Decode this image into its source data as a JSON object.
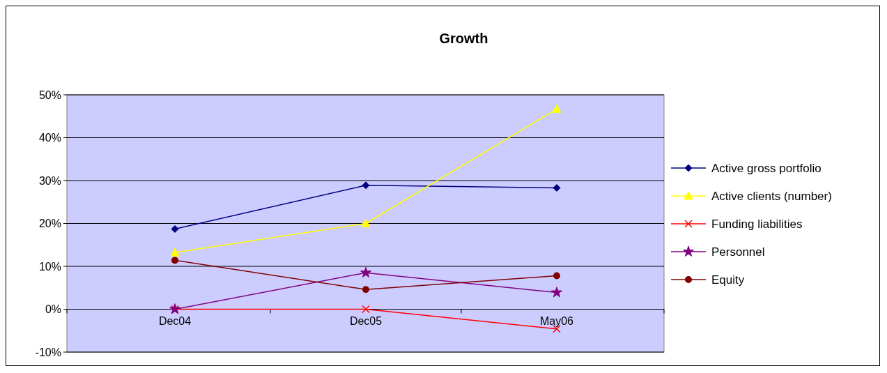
{
  "chart_data": {
    "type": "line",
    "title": "Growth",
    "categories": [
      "Dec04",
      "Dec05",
      "May06"
    ],
    "series": [
      {
        "name": "Active gross portfolio",
        "color": "#000080",
        "marker": "diamond",
        "values": [
          18.7,
          28.9,
          28.3
        ]
      },
      {
        "name": "Active clients (number)",
        "color": "#ffff00",
        "marker": "triangle",
        "values": [
          13.2,
          20,
          46.7
        ]
      },
      {
        "name": "Funding liabilities",
        "color": "#ff0000",
        "marker": "cross",
        "values": [
          0,
          0,
          -4.6
        ]
      },
      {
        "name": "Personnel",
        "color": "#800080",
        "marker": "star",
        "values": [
          0,
          8.5,
          3.9
        ]
      },
      {
        "name": "Equity",
        "color": "#800000",
        "marker": "circle",
        "values": [
          11.4,
          4.6,
          7.8
        ]
      }
    ],
    "ylim": [
      -10,
      50
    ],
    "yticks": [
      {
        "value": -10,
        "label": "-10%"
      },
      {
        "value": 0,
        "label": "0%"
      },
      {
        "value": 10,
        "label": "10%"
      },
      {
        "value": 20,
        "label": "20%"
      },
      {
        "value": 30,
        "label": "30%"
      },
      {
        "value": 40,
        "label": "40%"
      },
      {
        "value": 50,
        "label": "50%"
      }
    ],
    "grid": "y",
    "legend": "right"
  }
}
